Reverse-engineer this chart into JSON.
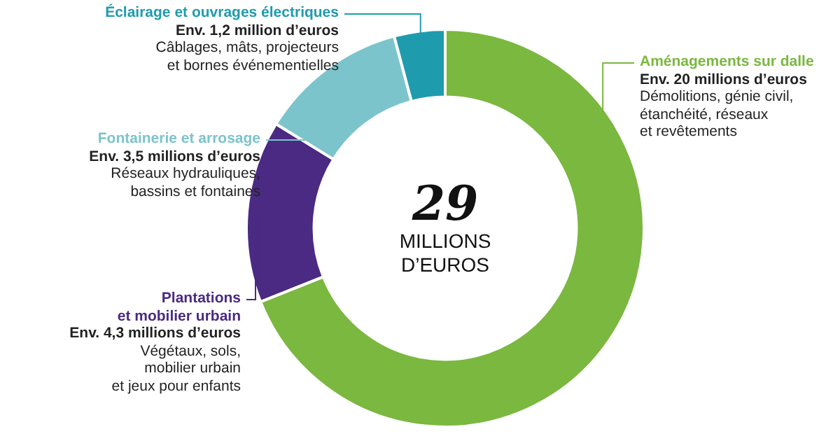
{
  "chart_data": {
    "type": "donut",
    "title": "29",
    "subtitle": "MILLIONS\nD’EUROS",
    "categories": [
      "Aménagements sur dalle",
      "Plantations\net mobilier urbain",
      "Fontainerie et arrosage",
      "Éclairage et ouvrages électriques"
    ],
    "values": [
      20,
      4.3,
      3.5,
      1.2
    ],
    "colors": [
      "#7ab83f",
      "#4a2a82",
      "#7cc4cb",
      "#1f9bae"
    ],
    "value_labels": [
      "Env. 20 millions d’euros",
      "Env. 4,3 millions d’euros",
      "Env. 3,5 millions d’euros",
      "Env. 1,2 million d’euros"
    ],
    "annotations": [
      "Démolitions, génie civil,\nétanchéité, réseaux\net revêtements",
      "Végétaux, sols,\nmobilier urbain\net jeux pour enfants",
      "Réseaux hydrauliques,\nbassins et fontaines",
      "Câblages, mâts, projecteurs\net bornes événementielles"
    ],
    "legend": false
  }
}
